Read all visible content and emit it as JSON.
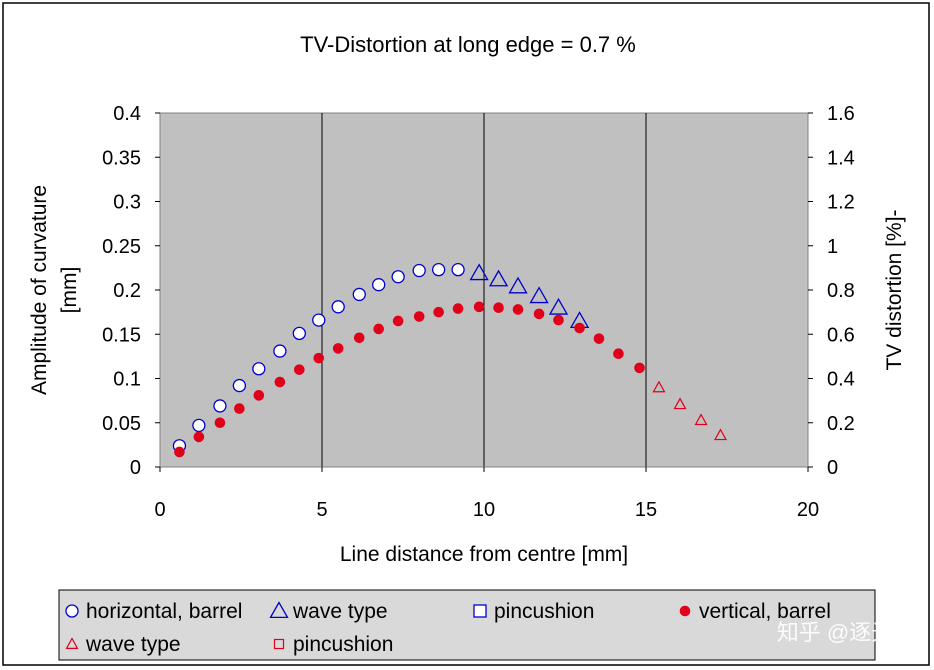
{
  "chart_data": {
    "type": "scatter",
    "title": "TV-Distortion at long edge = 0.7 %",
    "xlabel": "Line distance from centre [mm]",
    "ylabel_line1": "Amplitude of curvature",
    "ylabel_line2": "[mm]",
    "y2label": "TV distortion  [%]-",
    "xlim": [
      0,
      20
    ],
    "ylim": [
      0,
      0.4
    ],
    "y2lim": [
      0,
      1.6
    ],
    "x_ticks": [
      0,
      5,
      10,
      15,
      20
    ],
    "x_tick_labels": [
      "0",
      "5",
      "10",
      "15",
      "20"
    ],
    "y_ticks": [
      0,
      0.05,
      0.1,
      0.15,
      0.2,
      0.25,
      0.3,
      0.35,
      0.4
    ],
    "y_tick_labels": [
      "0",
      "0.05",
      "0.1",
      "0.15",
      "0.2",
      "0.25",
      "0.3",
      "0.35",
      "0.4"
    ],
    "y2_ticks": [
      0,
      0.2,
      0.4,
      0.6,
      0.8,
      1,
      1.2,
      1.4,
      1.6
    ],
    "y2_tick_labels": [
      "0",
      "0.2",
      "0.4",
      "0.6",
      "0.8",
      "1",
      "1.2",
      "1.4",
      "1.6"
    ],
    "grid": "vertical",
    "legend_position": "bottom",
    "series": [
      {
        "name": "horizontal, barrel",
        "marker": "circle-open",
        "color": "#0000cc",
        "x": [
          0.6,
          1.2,
          1.85,
          2.45,
          3.05,
          3.7,
          4.3,
          4.9,
          5.5,
          6.15,
          6.75,
          7.35,
          8.0,
          8.6,
          9.2
        ],
        "y": [
          0.024,
          0.047,
          0.069,
          0.092,
          0.111,
          0.131,
          0.151,
          0.166,
          0.181,
          0.195,
          0.206,
          0.215,
          0.222,
          0.223,
          0.223
        ]
      },
      {
        "name": "wave type",
        "marker": "triangle-open-large",
        "color": "#0000cc",
        "x": [
          9.85,
          10.45,
          11.05,
          11.7,
          12.3,
          12.95
        ],
        "y": [
          0.219,
          0.212,
          0.204,
          0.193,
          0.18,
          0.165
        ]
      },
      {
        "name": "pincushion",
        "marker": "square-open",
        "color": "#0000cc",
        "x": [],
        "y": []
      },
      {
        "name": "vertical, barrel",
        "marker": "circle-filled",
        "color": "#e0001a",
        "x": [
          0.6,
          1.2,
          1.85,
          2.45,
          3.05,
          3.7,
          4.3,
          4.9,
          5.5,
          6.15,
          6.75,
          7.35,
          8.0,
          8.6,
          9.2,
          9.85,
          10.45,
          11.05,
          11.7,
          12.3,
          12.95,
          13.55,
          14.15,
          14.8
        ],
        "y": [
          0.017,
          0.034,
          0.05,
          0.066,
          0.081,
          0.096,
          0.11,
          0.123,
          0.134,
          0.146,
          0.156,
          0.165,
          0.17,
          0.175,
          0.179,
          0.181,
          0.18,
          0.178,
          0.173,
          0.166,
          0.157,
          0.145,
          0.128,
          0.112
        ]
      },
      {
        "name": "wave type",
        "marker": "triangle-open-small",
        "color": "#e0001a",
        "x": [
          15.4,
          16.05,
          16.7,
          17.3
        ],
        "y": [
          0.09,
          0.071,
          0.053,
          0.036
        ]
      },
      {
        "name": "pincushion",
        "marker": "square-open-small",
        "color": "#e0001a",
        "x": [],
        "y": []
      }
    ]
  },
  "watermark": "知乎 @逐光",
  "colors": {
    "plot_background": "#c0c0c0",
    "legend_background": "#d9d9d9",
    "blue": "#0000cc",
    "red": "#e0001a"
  }
}
